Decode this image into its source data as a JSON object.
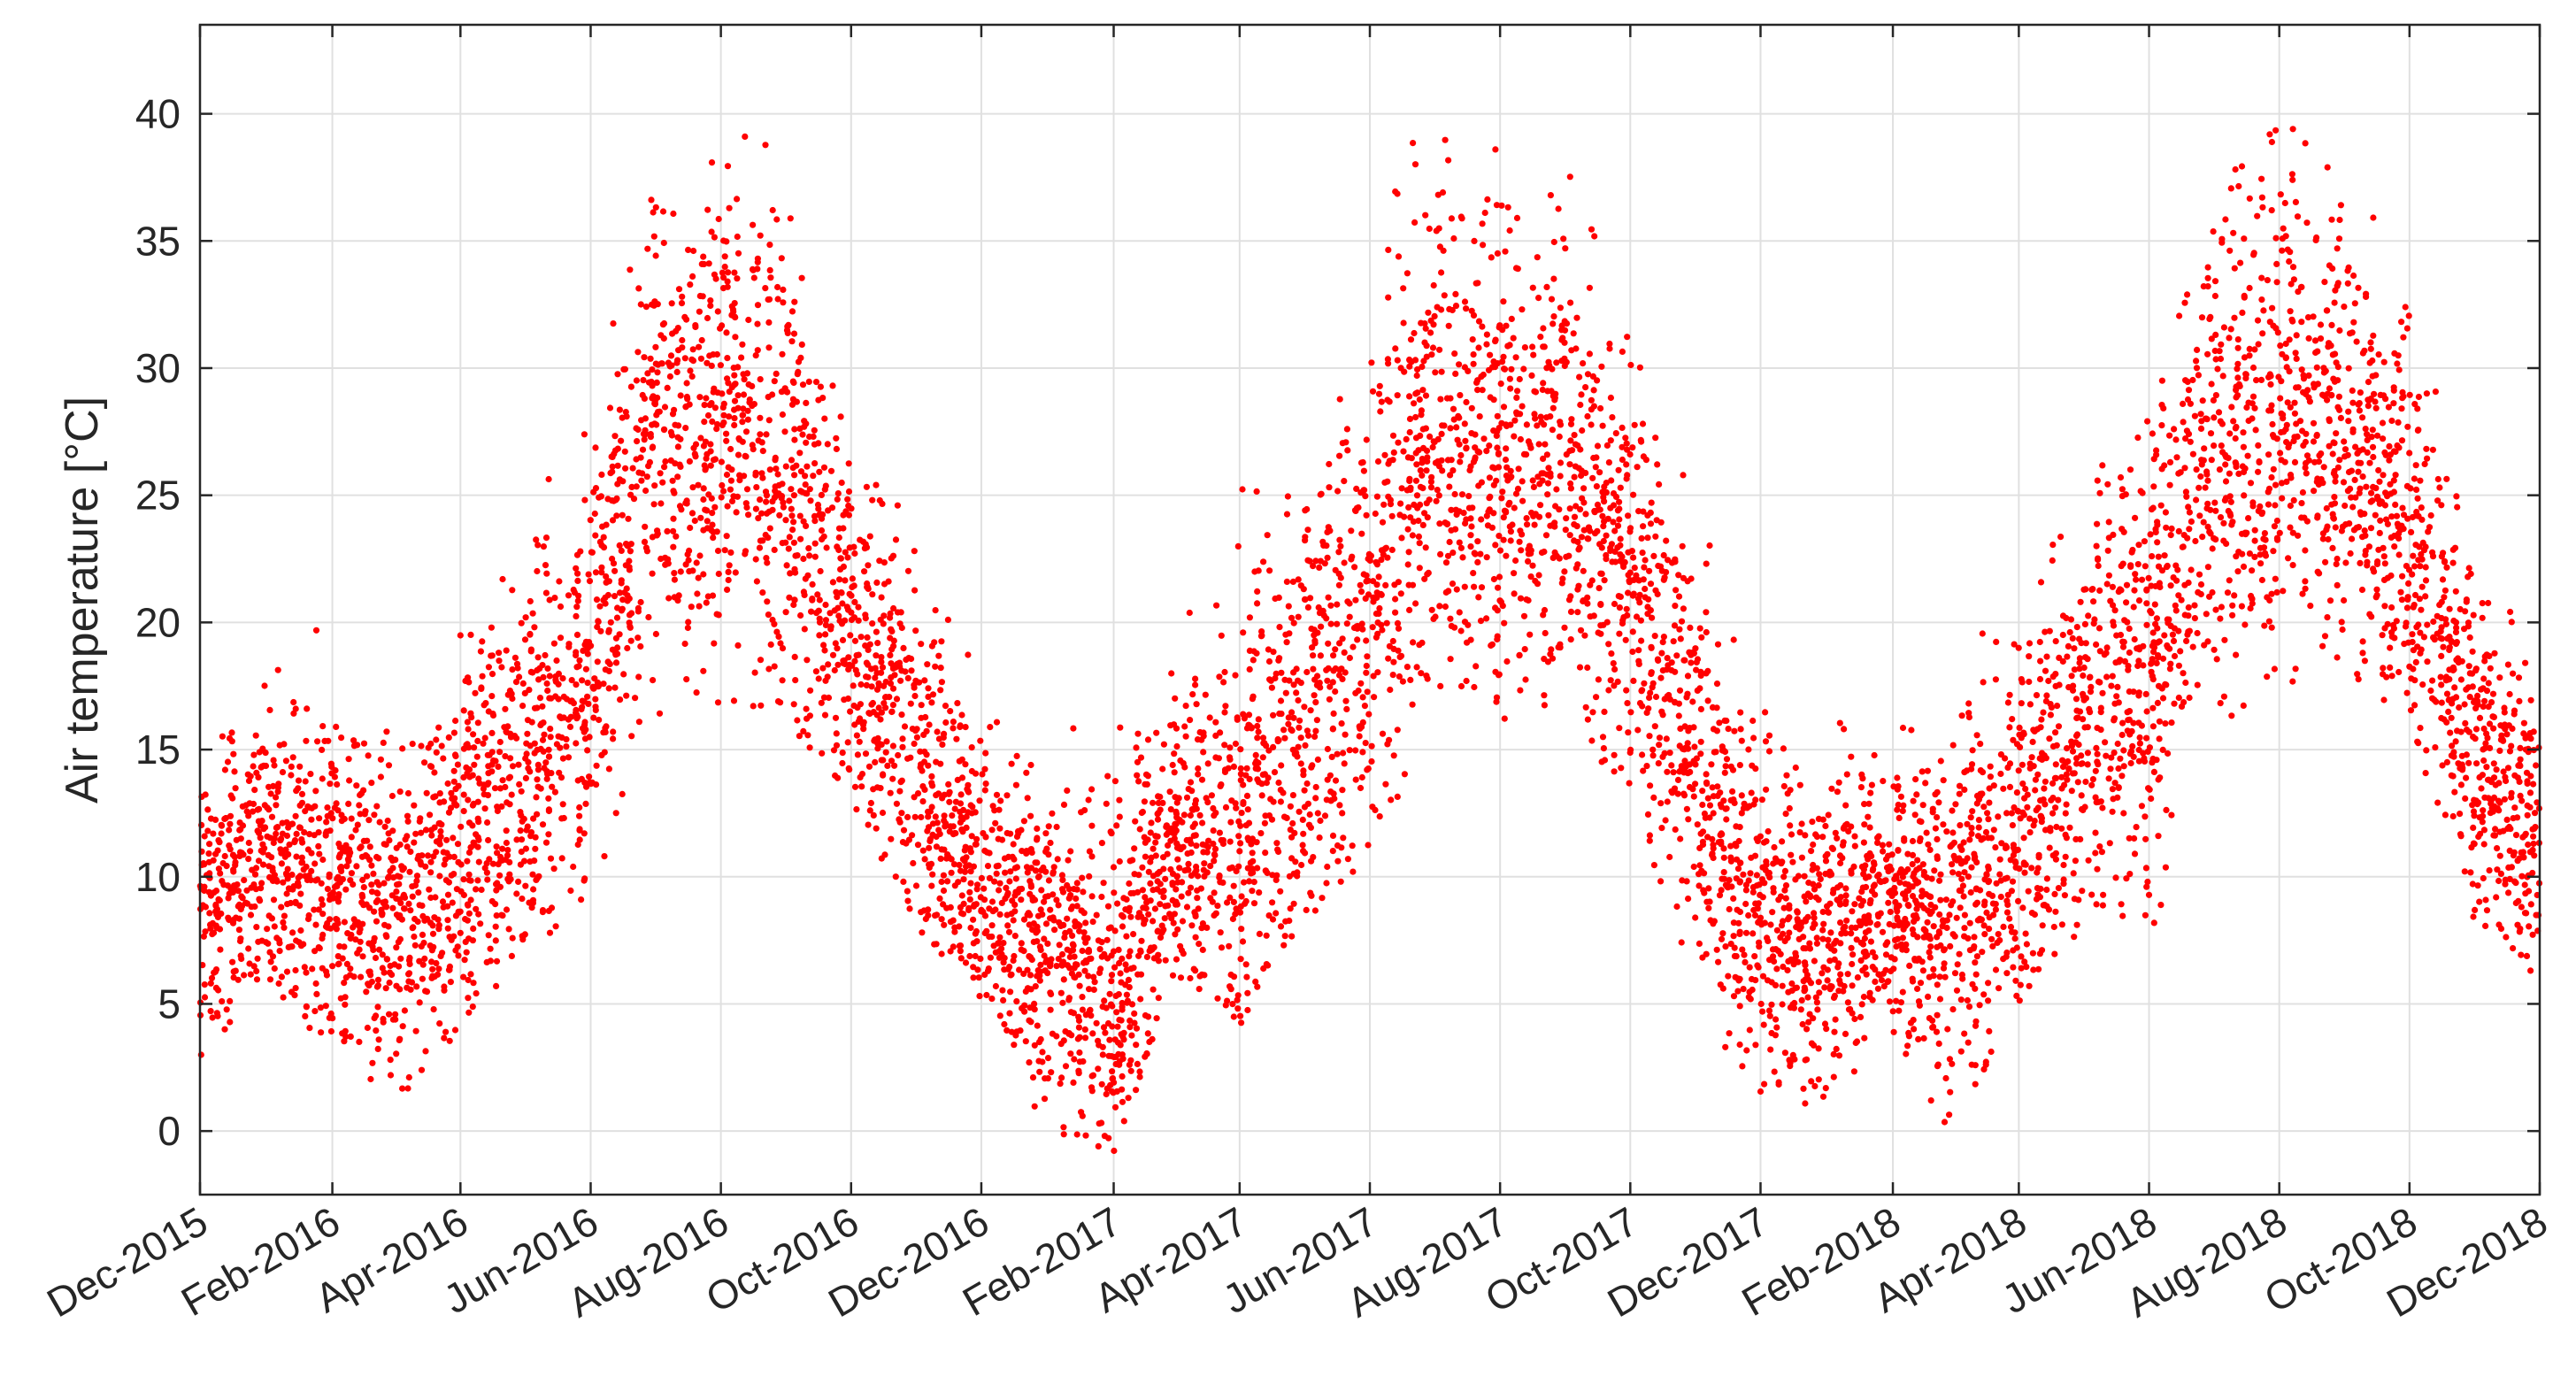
{
  "chart_data": {
    "type": "scatter",
    "title": "",
    "xlabel": "",
    "ylabel": "Air temperature [°C]",
    "x_scale": "date",
    "x_range": [
      "2015-12-01",
      "2018-12-01"
    ],
    "ylim": [
      -2.5,
      43.5
    ],
    "grid": true,
    "marker_color": "#ff0000",
    "x_tick_labels": [
      "Dec-2015",
      "Feb-2016",
      "Apr-2016",
      "Jun-2016",
      "Aug-2016",
      "Oct-2016",
      "Dec-2016",
      "Feb-2017",
      "Apr-2017",
      "Jun-2017",
      "Aug-2017",
      "Oct-2017",
      "Dec-2017",
      "Feb-2018",
      "Apr-2018",
      "Jun-2018",
      "Aug-2018",
      "Oct-2018",
      "Dec-2018"
    ],
    "x_tick_dates": [
      "2015-12-01",
      "2016-02-01",
      "2016-04-01",
      "2016-06-01",
      "2016-08-01",
      "2016-10-01",
      "2016-12-01",
      "2017-02-01",
      "2017-04-01",
      "2017-06-01",
      "2017-08-01",
      "2017-10-01",
      "2017-12-01",
      "2018-02-01",
      "2018-04-01",
      "2018-06-01",
      "2018-08-01",
      "2018-10-01",
      "2018-12-01"
    ],
    "y_ticks": [
      0,
      5,
      10,
      15,
      20,
      25,
      30,
      35,
      40
    ],
    "y_tick_labels": [
      "0",
      "5",
      "10",
      "15",
      "20",
      "25",
      "30",
      "35",
      "40"
    ],
    "series": [
      {
        "description_key": "daily_envelope",
        "x": [
          "2015-12-01",
          "2016-01-01",
          "2016-02-01",
          "2016-03-01",
          "2016-04-01",
          "2016-05-01",
          "2016-06-01",
          "2016-07-01",
          "2016-08-01",
          "2016-09-01",
          "2016-10-01",
          "2016-11-01",
          "2016-12-01",
          "2017-01-01",
          "2017-02-01",
          "2017-03-01",
          "2017-04-01",
          "2017-05-01",
          "2017-06-01",
          "2017-07-01",
          "2017-08-01",
          "2017-09-01",
          "2017-10-01",
          "2017-11-01",
          "2017-12-01",
          "2018-01-01",
          "2018-02-01",
          "2018-03-01",
          "2018-04-01",
          "2018-05-01",
          "2018-06-01",
          "2018-07-01",
          "2018-08-01",
          "2018-09-01",
          "2018-10-01",
          "2018-11-01",
          "2018-12-01"
        ],
        "y_min": [
          2,
          6,
          3,
          1,
          4,
          7,
          9,
          16,
          16,
          16,
          13,
          8,
          5,
          0,
          -1,
          6,
          4,
          8,
          10,
          17,
          16,
          16,
          13,
          5,
          1,
          1,
          2,
          0,
          5,
          8,
          7,
          12,
          17,
          18,
          16,
          8,
          6
        ],
        "y_max": [
          15,
          19,
          20,
          17,
          21,
          27,
          31,
          37,
          40,
          42,
          31,
          26,
          19,
          15,
          19,
          21,
          27,
          30,
          35,
          42,
          40,
          40,
          34,
          25,
          18,
          17,
          16,
          18,
          25,
          29,
          29,
          36,
          42,
          38,
          36,
          25,
          21
        ],
        "y_mean": [
          9,
          11,
          10,
          8,
          11,
          14,
          18,
          27,
          28,
          25,
          20,
          15,
          10,
          7,
          5,
          11,
          12,
          16,
          20,
          28,
          26,
          26,
          22,
          14,
          8,
          8,
          9,
          8,
          11,
          16,
          19,
          27,
          28,
          27,
          24,
          15,
          11
        ]
      }
    ]
  }
}
